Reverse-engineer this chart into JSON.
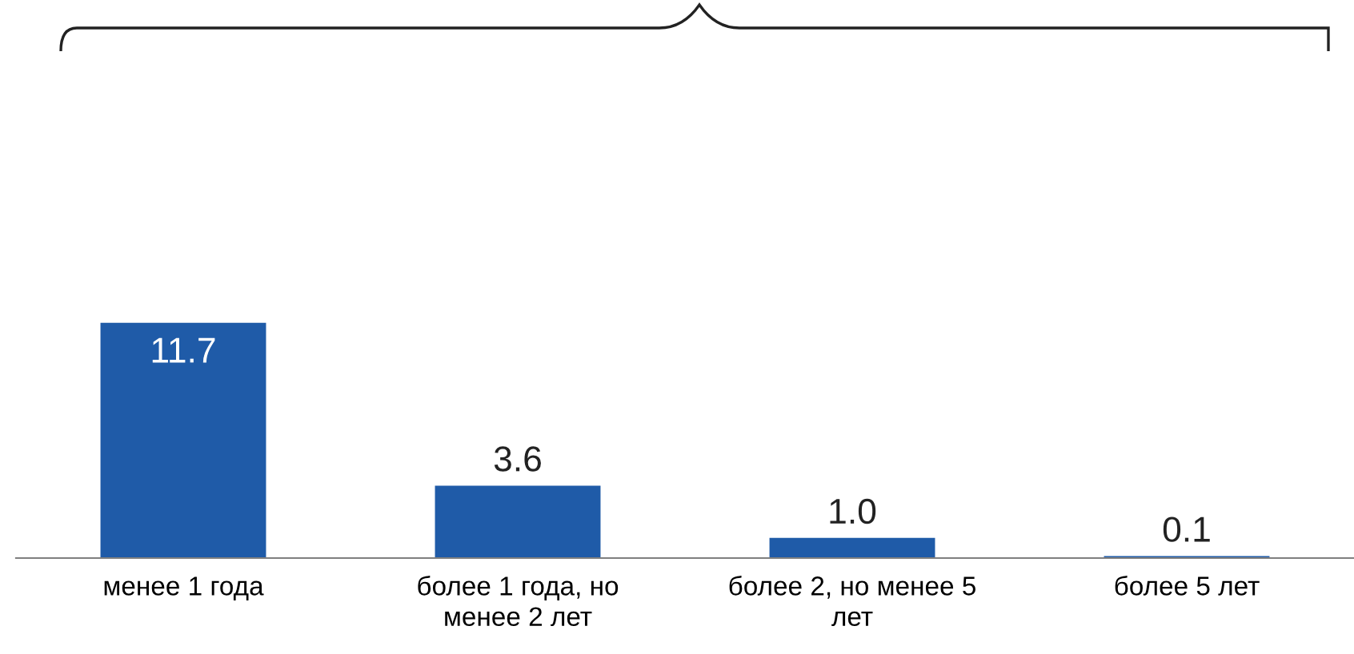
{
  "chart_data": {
    "type": "bar",
    "categories": [
      "менее 1 года",
      "более 1 года, но\nменее 2 лет",
      "более 2, но менее 5\nлет",
      "более 5 лет"
    ],
    "values": [
      11.7,
      3.6,
      1.0,
      0.1
    ],
    "color": "#1f5ba8",
    "value_labels": [
      "11.7",
      "3.6",
      "1.0",
      "0.1"
    ]
  }
}
